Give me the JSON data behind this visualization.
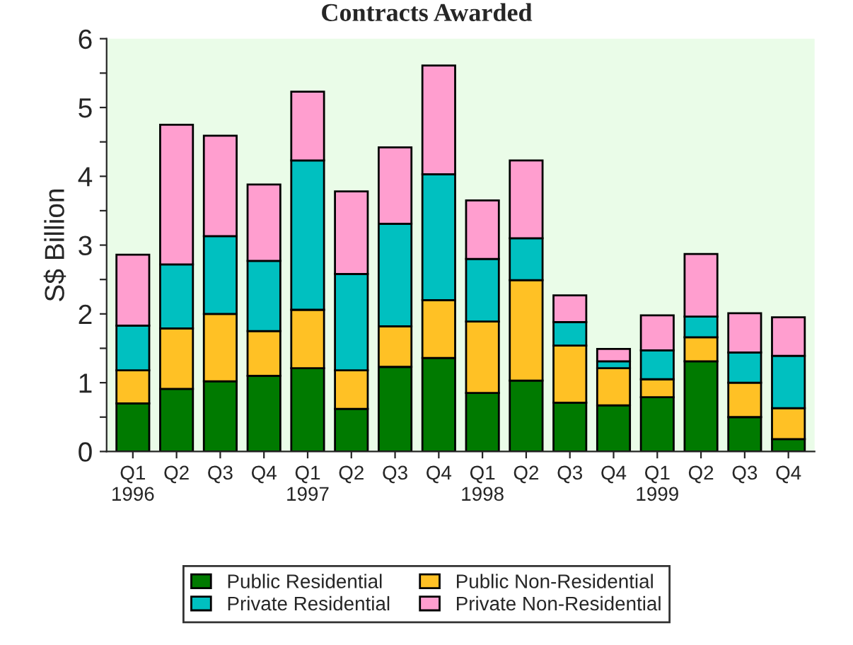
{
  "chart_data": {
    "type": "bar",
    "title": "Contracts Awarded",
    "ylabel": "S$ Billion",
    "stacked": true,
    "categories": [
      "Q1\n1996",
      "Q2",
      "Q3",
      "Q4",
      "Q1\n1997",
      "Q2",
      "Q3",
      "Q4",
      "Q1\n1998",
      "Q2",
      "Q3",
      "Q4",
      "Q1\n1999",
      "Q2",
      "Q3",
      "Q4"
    ],
    "series": [
      {
        "name": "Public Residential",
        "color": "#007a00",
        "values": [
          0.7,
          0.91,
          1.02,
          1.1,
          1.21,
          0.62,
          1.23,
          1.36,
          0.85,
          1.03,
          0.71,
          0.67,
          0.79,
          1.31,
          0.5,
          0.18
        ]
      },
      {
        "name": "Public Non-Residential",
        "color": "#ffc125",
        "values": [
          0.48,
          0.88,
          0.98,
          0.65,
          0.85,
          0.56,
          0.59,
          0.84,
          1.04,
          1.46,
          0.83,
          0.54,
          0.26,
          0.35,
          0.5,
          0.45
        ]
      },
      {
        "name": "Private Residential",
        "color": "#00c0c0",
        "values": [
          0.65,
          0.93,
          1.13,
          1.02,
          2.17,
          1.4,
          1.49,
          1.83,
          0.91,
          0.61,
          0.34,
          0.1,
          0.42,
          0.3,
          0.44,
          0.76
        ]
      },
      {
        "name": "Private Non-Residential",
        "color": "#ff9ecf",
        "values": [
          1.03,
          2.03,
          1.46,
          1.11,
          1.0,
          1.2,
          1.11,
          1.58,
          0.85,
          1.13,
          0.39,
          0.18,
          0.51,
          0.91,
          0.57,
          0.56
        ]
      }
    ],
    "ylim": [
      0,
      6
    ],
    "yticks": [
      0,
      {
        "value": 0.5,
        "label": null
      },
      1,
      {
        "value": 1.5,
        "label": null
      },
      2,
      {
        "value": 2.5,
        "label": null
      },
      3,
      {
        "value": 3.5,
        "label": null
      },
      4,
      {
        "value": 4.5,
        "label": null
      },
      5,
      {
        "value": 5.5,
        "label": null
      },
      6
    ],
    "grid": false,
    "legend": "bottom"
  }
}
